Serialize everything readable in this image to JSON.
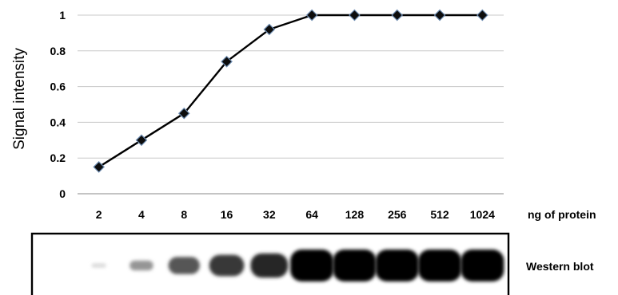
{
  "chart_data": {
    "type": "line",
    "ylabel": "Signal intensity",
    "xlabel": "ng of protein",
    "ylim": [
      0,
      1
    ],
    "y_ticks": [
      "0",
      "0.2",
      "0.4",
      "0.6",
      "0.8",
      "1"
    ],
    "categories": [
      "2",
      "4",
      "8",
      "16",
      "32",
      "64",
      "128",
      "256",
      "512",
      "1024"
    ],
    "series": [
      {
        "values": [
          0.15,
          0.3,
          0.45,
          0.74,
          0.92,
          1.0,
          1.0,
          1.0,
          1.0,
          1.0
        ]
      }
    ],
    "grid": true
  },
  "blot": {
    "label": "Western blot",
    "band_intensities": [
      0.08,
      0.35,
      0.6,
      0.72,
      0.8,
      1.0,
      1.0,
      1.0,
      1.0,
      1.0
    ]
  }
}
